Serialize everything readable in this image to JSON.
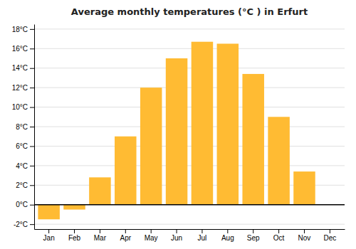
{
  "chart_data": {
    "type": "bar",
    "title": "Average monthly temperatures (°C ) in Erfurt",
    "categories": [
      "Jan",
      "Feb",
      "Mar",
      "Apr",
      "May",
      "Jun",
      "Jul",
      "Aug",
      "Sep",
      "Oct",
      "Nov",
      "Dec"
    ],
    "values": [
      -1.5,
      -0.5,
      2.8,
      7.0,
      12.0,
      15.0,
      16.7,
      16.5,
      13.4,
      9.0,
      3.4,
      0.0
    ],
    "color": "#FFBB33",
    "ylim": [
      -2.5,
      18.5
    ],
    "yticks": [
      {
        "value": -2,
        "label": "-2°C"
      },
      {
        "value": 0,
        "label": "0°C"
      },
      {
        "value": 2,
        "label": "2°C"
      },
      {
        "value": 4,
        "label": "4°C"
      },
      {
        "value": 6,
        "label": "6°C"
      },
      {
        "value": 8,
        "label": "8°C"
      },
      {
        "value": 10,
        "label": "10°C"
      },
      {
        "value": 12,
        "label": "12°C"
      },
      {
        "value": 14,
        "label": "14°C"
      },
      {
        "value": 16,
        "label": "16°C"
      },
      {
        "value": 18,
        "label": "18°C"
      }
    ],
    "grid": true
  }
}
